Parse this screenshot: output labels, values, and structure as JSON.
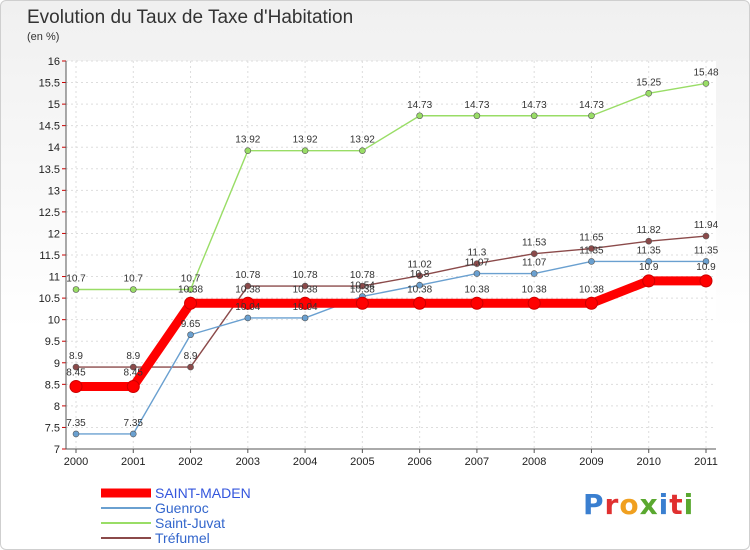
{
  "title": "Evolution du Taux de Taxe d'Habitation",
  "subtitle": "(en %)",
  "logo": {
    "text": "Proxiti",
    "letter_colors": [
      "#3a7fd0",
      "#e03030",
      "#f0a020",
      "#5aa830",
      "#3a7fd0",
      "#e03030",
      "#5aa830"
    ]
  },
  "chart_data": {
    "type": "line",
    "categories": [
      "2000",
      "2001",
      "2002",
      "2003",
      "2004",
      "2005",
      "2006",
      "2007",
      "2008",
      "2009",
      "2010",
      "2011"
    ],
    "ylim": [
      7,
      16
    ],
    "ytick_step": 0.5,
    "yticks": [
      "7",
      "7.5",
      "8",
      "8.5",
      "9",
      "9.5",
      "10",
      "10.5",
      "11",
      "11.5",
      "12",
      "12.5",
      "13",
      "13.5",
      "14",
      "14.5",
      "15",
      "15.5",
      "16"
    ],
    "grid": true,
    "legend_position": "bottom-left",
    "series": [
      {
        "name": "SAINT-MADEN",
        "color": "#ff0000",
        "values": [
          8.45,
          8.45,
          10.38,
          10.38,
          10.38,
          10.38,
          10.38,
          10.38,
          10.38,
          10.38,
          10.9,
          10.9
        ],
        "labels": [
          "8.45",
          "8.45",
          "10.38",
          "10.38",
          "10.38",
          "10.38",
          "10.38",
          "10.38",
          "10.38",
          "10.38",
          "10.9",
          "10.9"
        ]
      },
      {
        "name": "Guenroc",
        "color": "#6aa0d0",
        "values": [
          7.35,
          7.35,
          9.65,
          10.04,
          10.04,
          10.54,
          10.8,
          11.07,
          11.07,
          11.35,
          11.35,
          11.35
        ],
        "labels": [
          "7.35",
          "7.35",
          "9.65",
          "10.04",
          "10.04",
          "10.54",
          "10.8",
          "11.07",
          "11.07",
          "11.35",
          "11.35",
          "11.35"
        ]
      },
      {
        "name": "Saint-Juvat",
        "color": "#99dd66",
        "values": [
          10.7,
          10.7,
          10.7,
          13.92,
          13.92,
          13.92,
          14.73,
          14.73,
          14.73,
          14.73,
          15.25,
          15.48
        ],
        "labels": [
          "10.7",
          "10.7",
          "10.7",
          "13.92",
          "13.92",
          "13.92",
          "14.73",
          "14.73",
          "14.73",
          "14.73",
          "15.25",
          "15.48"
        ]
      },
      {
        "name": "Tréfumel",
        "color": "#8b4a4a",
        "values": [
          8.9,
          8.9,
          8.9,
          10.78,
          10.78,
          10.78,
          11.02,
          11.3,
          11.53,
          11.65,
          11.82,
          11.94
        ],
        "labels": [
          "8.9",
          "8.9",
          "8.9",
          "10.78",
          "10.78",
          "10.78",
          "11.02",
          "11.3",
          "11.53",
          "11.65",
          "11.82",
          "11.94"
        ]
      }
    ]
  }
}
